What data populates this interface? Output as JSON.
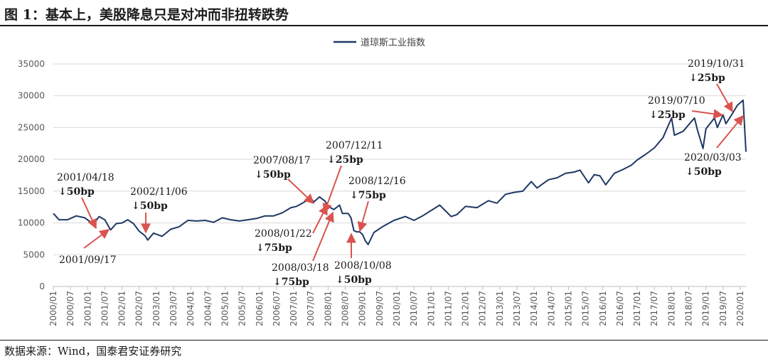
{
  "page": {
    "title": "图 1：基本上，美股降息只是对冲而非扭转跌势",
    "source": "数据来源：Wind，国泰君安证券研究"
  },
  "colors": {
    "series": "#1f3864",
    "arrow": "#d9534f",
    "grid": "#d9d9d9",
    "text": "#1a1a1a"
  },
  "chart_data": {
    "type": "line",
    "legend": "道琼斯工业指数",
    "legend_position": "top-center",
    "grid": true,
    "ylim": [
      0,
      35000
    ],
    "yticks": [
      0,
      5000,
      10000,
      15000,
      20000,
      25000,
      30000,
      35000
    ],
    "xlim": [
      "2000/01",
      "2020/03"
    ],
    "xtick_labels": [
      "2000/01",
      "2000/07",
      "2001/01",
      "2001/07",
      "2002/01",
      "2002/07",
      "2003/01",
      "2003/07",
      "2004/01",
      "2004/07",
      "2005/01",
      "2005/07",
      "2006/01",
      "2006/07",
      "2007/01",
      "2007/07",
      "2008/01",
      "2008/07",
      "2009/01",
      "2009/07",
      "2010/01",
      "2010/07",
      "2011/01",
      "2011/07",
      "2012/01",
      "2012/07",
      "2013/01",
      "2013/07",
      "2014/01",
      "2014/07",
      "2015/01",
      "2015/07",
      "2016/01",
      "2016/07",
      "2017/01",
      "2017/07",
      "2018/01",
      "2018/07",
      "2019/01",
      "2019/07",
      "2020/01"
    ],
    "series": [
      {
        "name": "道琼斯工业指数",
        "x": [
          "2000/01",
          "2000/03",
          "2000/06",
          "2000/09",
          "2000/12",
          "2001/03",
          "2001/05",
          "2001/07",
          "2001/09",
          "2001/11",
          "2002/01",
          "2002/03",
          "2002/05",
          "2002/07",
          "2002/09",
          "2002/10",
          "2002/12",
          "2003/03",
          "2003/06",
          "2003/09",
          "2003/12",
          "2004/03",
          "2004/06",
          "2004/09",
          "2004/12",
          "2005/03",
          "2005/06",
          "2005/09",
          "2005/12",
          "2006/03",
          "2006/06",
          "2006/09",
          "2006/12",
          "2007/02",
          "2007/04",
          "2007/07",
          "2007/08",
          "2007/10",
          "2007/12",
          "2008/01",
          "2008/03",
          "2008/05",
          "2008/06",
          "2008/08",
          "2008/09",
          "2008/10",
          "2008/11",
          "2008/12",
          "2009/01",
          "2009/02",
          "2009/03",
          "2009/05",
          "2009/08",
          "2009/12",
          "2010/04",
          "2010/07",
          "2010/10",
          "2011/04",
          "2011/08",
          "2011/10",
          "2012/01",
          "2012/05",
          "2012/09",
          "2012/12",
          "2013/03",
          "2013/06",
          "2013/09",
          "2013/12",
          "2014/02",
          "2014/06",
          "2014/09",
          "2014/12",
          "2015/03",
          "2015/05",
          "2015/08",
          "2015/10",
          "2015/12",
          "2016/02",
          "2016/05",
          "2016/08",
          "2016/11",
          "2017/01",
          "2017/04",
          "2017/07",
          "2017/10",
          "2018/01",
          "2018/02",
          "2018/05",
          "2018/09",
          "2018/10",
          "2018/12",
          "2019/01",
          "2019/04",
          "2019/05",
          "2019/07",
          "2019/08",
          "2019/10",
          "2019/12",
          "2020/02",
          "2020/03"
        ],
        "values": [
          11500,
          10500,
          10500,
          11100,
          10800,
          9800,
          11000,
          10500,
          8900,
          9900,
          10000,
          10500,
          9900,
          8700,
          8000,
          7300,
          8400,
          7900,
          9000,
          9400,
          10400,
          10300,
          10400,
          10100,
          10800,
          10500,
          10300,
          10500,
          10700,
          11100,
          11100,
          11600,
          12400,
          12600,
          13100,
          13900,
          13300,
          14100,
          13400,
          12600,
          12100,
          12800,
          11500,
          11500,
          10800,
          8800,
          8600,
          8600,
          8200,
          7200,
          6600,
          8500,
          9400,
          10400,
          11000,
          10400,
          11100,
          12800,
          11000,
          11300,
          12600,
          12400,
          13500,
          13100,
          14500,
          14800,
          15000,
          16500,
          15500,
          16800,
          17100,
          17800,
          18000,
          18300,
          16300,
          17600,
          17400,
          16000,
          17800,
          18400,
          19100,
          19900,
          20800,
          21800,
          23400,
          26500,
          23800,
          24400,
          26500,
          24700,
          21700,
          24800,
          26500,
          25000,
          27000,
          25600,
          27000,
          28500,
          29300,
          21200
        ]
      }
    ],
    "annotations": [
      {
        "date": "2001/04/18",
        "cut": "↓50bp"
      },
      {
        "date": "2001/09/17",
        "cut": ""
      },
      {
        "date": "2002/11/06",
        "cut": "↓50bp"
      },
      {
        "date": "2007/08/17",
        "cut": "↓50bp"
      },
      {
        "date": "2007/12/11",
        "cut": "↓25bp"
      },
      {
        "date": "2008/01/22",
        "cut": "↓75bp"
      },
      {
        "date": "2008/03/18",
        "cut": "↓75bp"
      },
      {
        "date": "2008/10/08",
        "cut": "↓50bp"
      },
      {
        "date": "2008/12/16",
        "cut": "↓75bp"
      },
      {
        "date": "2019/07/10",
        "cut": "↓25bp"
      },
      {
        "date": "2019/10/31",
        "cut": "↓25bp"
      },
      {
        "date": "2020/03/03",
        "cut": "↓50bp"
      }
    ]
  }
}
